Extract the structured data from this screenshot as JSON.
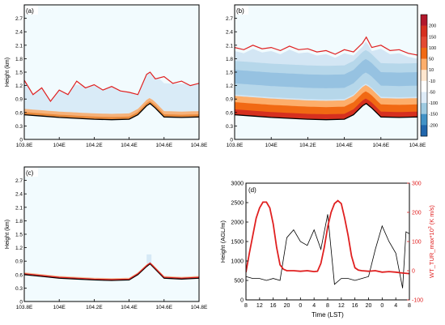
{
  "chart_data": [
    {
      "panel": "(a)",
      "type": "heatmap",
      "ylabel": "Height (km)",
      "x_ticks": [
        "103.8E",
        "104E",
        "104.2E",
        "104.4E",
        "104.6E",
        "104.8E"
      ],
      "x_tick_values": [
        103.8,
        104.0,
        104.2,
        104.4,
        104.6,
        104.8
      ],
      "y_ticks": [
        "0",
        "0.3",
        "0.6",
        "0.9",
        "1.2",
        "1.5",
        "1.8",
        "2.1",
        "2.4",
        "2.7"
      ],
      "xlim": [
        103.8,
        104.8
      ],
      "ylim": [
        0,
        3.0
      ],
      "terrain_line": {
        "color": "#000000",
        "x": [
          103.8,
          103.9,
          104.0,
          104.1,
          104.2,
          104.3,
          104.4,
          104.45,
          104.5,
          104.52,
          104.55,
          104.6,
          104.7,
          104.8
        ],
        "y": [
          0.55,
          0.52,
          0.49,
          0.47,
          0.45,
          0.44,
          0.45,
          0.55,
          0.75,
          0.8,
          0.7,
          0.5,
          0.49,
          0.5
        ]
      },
      "boundary_line": {
        "color": "#e02020",
        "x": [
          103.8,
          103.85,
          103.9,
          103.95,
          104.0,
          104.05,
          104.1,
          104.15,
          104.2,
          104.25,
          104.3,
          104.35,
          104.4,
          104.45,
          104.5,
          104.52,
          104.55,
          104.6,
          104.65,
          104.7,
          104.75,
          104.8
        ],
        "y": [
          1.32,
          1.0,
          1.15,
          0.85,
          1.1,
          1.0,
          1.3,
          1.15,
          1.22,
          1.1,
          1.18,
          1.08,
          1.05,
          1.0,
          1.45,
          1.5,
          1.35,
          1.4,
          1.25,
          1.3,
          1.2,
          1.25
        ]
      },
      "fill_bands": [
        {
          "color": "#f4a460",
          "x": [
            103.8,
            104.8
          ],
          "bottom": "terrain",
          "top_offset": 0.1
        },
        {
          "color": "#d9eaf5",
          "x": [
            103.8,
            104.8
          ],
          "bottom_offset": 0.1,
          "top_offset": 0.6
        }
      ]
    },
    {
      "panel": "(b)",
      "type": "heatmap",
      "ylabel": "",
      "x_ticks": [
        "103.8E",
        "104E",
        "104.2E",
        "104.4E",
        "104.6E",
        "104.8E"
      ],
      "x_tick_values": [
        103.8,
        104.0,
        104.2,
        104.4,
        104.6,
        104.8
      ],
      "y_ticks": [
        "0",
        "0.3",
        "0.6",
        "0.9",
        "1.2",
        "1.5",
        "1.8",
        "2.1",
        "2.4",
        "2.7"
      ],
      "xlim": [
        103.8,
        104.8
      ],
      "ylim": [
        0,
        3.0
      ],
      "terrain_line": {
        "color": "#000000",
        "x": [
          103.8,
          103.9,
          104.0,
          104.1,
          104.2,
          104.3,
          104.4,
          104.45,
          104.5,
          104.52,
          104.55,
          104.6,
          104.7,
          104.8
        ],
        "y": [
          0.55,
          0.52,
          0.49,
          0.47,
          0.45,
          0.44,
          0.45,
          0.55,
          0.75,
          0.8,
          0.7,
          0.5,
          0.49,
          0.5
        ]
      },
      "boundary_line": {
        "color": "#e02020",
        "x": [
          103.8,
          103.85,
          103.9,
          103.95,
          104.0,
          104.05,
          104.1,
          104.15,
          104.2,
          104.25,
          104.3,
          104.35,
          104.4,
          104.45,
          104.5,
          104.52,
          104.55,
          104.6,
          104.65,
          104.7,
          104.75,
          104.8
        ],
        "y": [
          2.05,
          2.0,
          2.1,
          2.02,
          2.05,
          1.98,
          2.08,
          2.0,
          2.02,
          1.95,
          1.98,
          1.9,
          2.0,
          1.95,
          2.15,
          2.28,
          2.05,
          2.1,
          1.98,
          2.0,
          1.92,
          1.88
        ]
      },
      "colorbar": {
        "ticks": [
          200,
          150,
          100,
          50,
          10,
          -10,
          -50,
          -100,
          -150,
          -200
        ],
        "colors": [
          "#b2182b",
          "#d6301f",
          "#e34a33",
          "#f16913",
          "#fdae6b",
          "#fee6ce",
          "#ffffff",
          "#deebf7",
          "#9ecae1",
          "#4292c6",
          "#2166ac"
        ]
      }
    },
    {
      "panel": "(c)",
      "type": "heatmap",
      "ylabel": "Height (km)",
      "x_ticks": [
        "103.8E",
        "104E",
        "104.2E",
        "104.4E",
        "104.6E",
        "104.8E"
      ],
      "x_tick_values": [
        103.8,
        104.0,
        104.2,
        104.4,
        104.6,
        104.8
      ],
      "y_ticks": [
        "0",
        "0.3",
        "0.6",
        "0.9",
        "1.2",
        "1.5",
        "1.8",
        "2.1",
        "2.4",
        "2.7"
      ],
      "xlim": [
        103.8,
        104.8
      ],
      "ylim": [
        0,
        3.0
      ],
      "terrain_line": {
        "color": "#000000",
        "x": [
          103.8,
          103.9,
          104.0,
          104.1,
          104.2,
          104.3,
          104.4,
          104.45,
          104.5,
          104.52,
          104.55,
          104.6,
          104.7,
          104.8
        ],
        "y": [
          0.6,
          0.56,
          0.52,
          0.5,
          0.48,
          0.47,
          0.48,
          0.6,
          0.78,
          0.84,
          0.72,
          0.52,
          0.5,
          0.52
        ]
      },
      "boundary_line": {
        "color": "#e02020",
        "x": [
          103.8,
          103.9,
          104.0,
          104.1,
          104.2,
          104.3,
          104.4,
          104.45,
          104.5,
          104.52,
          104.55,
          104.6,
          104.7,
          104.8
        ],
        "y": [
          0.62,
          0.58,
          0.54,
          0.52,
          0.5,
          0.49,
          0.5,
          0.62,
          0.8,
          0.86,
          0.74,
          0.54,
          0.52,
          0.54
        ]
      }
    },
    {
      "panel": "(d)",
      "type": "line",
      "xlabel": "Time (LST)",
      "ylabel": "Height (AGL/m)",
      "y2label": "WT_TUR_max*10",
      "y2label_sup": "3",
      "y2label_units": " (K m/s)",
      "x_ticks": [
        "8",
        "12",
        "16",
        "20",
        "0",
        "4",
        "8",
        "12",
        "16",
        "20",
        "0",
        "4",
        "8"
      ],
      "x": [
        0,
        48
      ],
      "y_ticks": [
        "0",
        "500",
        "1000",
        "1500",
        "2000",
        "2500",
        "3000"
      ],
      "ylim": [
        0,
        3000
      ],
      "y2_ticks": [
        "-100",
        "0",
        "100",
        "200",
        "300"
      ],
      "y2lim": [
        -100,
        300
      ],
      "series": [
        {
          "name": "",
          "axis": "left",
          "color": "#000000",
          "x": [
            0,
            2,
            4,
            6,
            8,
            10,
            12,
            14,
            16,
            18,
            20,
            22,
            24,
            26,
            28,
            30,
            32,
            34,
            36,
            38,
            40,
            42,
            44,
            46,
            47,
            48
          ],
          "y": [
            600,
            550,
            550,
            500,
            550,
            500,
            1600,
            1800,
            1500,
            1400,
            1800,
            1300,
            2200,
            400,
            550,
            550,
            500,
            550,
            600,
            1300,
            1900,
            1500,
            1200,
            300,
            1750,
            1700
          ]
        },
        {
          "name": "",
          "axis": "right",
          "color": "#e02020",
          "x": [
            0,
            1,
            2,
            3,
            4,
            5,
            6,
            7,
            8,
            9,
            10,
            11,
            12,
            14,
            16,
            18,
            20,
            21,
            22,
            23,
            24,
            25,
            26,
            27,
            28,
            29,
            30,
            31,
            32,
            33,
            34,
            36,
            38,
            40,
            42,
            44,
            46,
            48
          ],
          "y": [
            -5,
            60,
            120,
            180,
            215,
            235,
            235,
            215,
            160,
            80,
            20,
            5,
            0,
            0,
            -2,
            0,
            -3,
            -2,
            25,
            80,
            150,
            200,
            230,
            240,
            230,
            180,
            120,
            50,
            10,
            2,
            0,
            -2,
            0,
            -5,
            -3,
            -5,
            -8,
            -10
          ]
        }
      ]
    }
  ]
}
